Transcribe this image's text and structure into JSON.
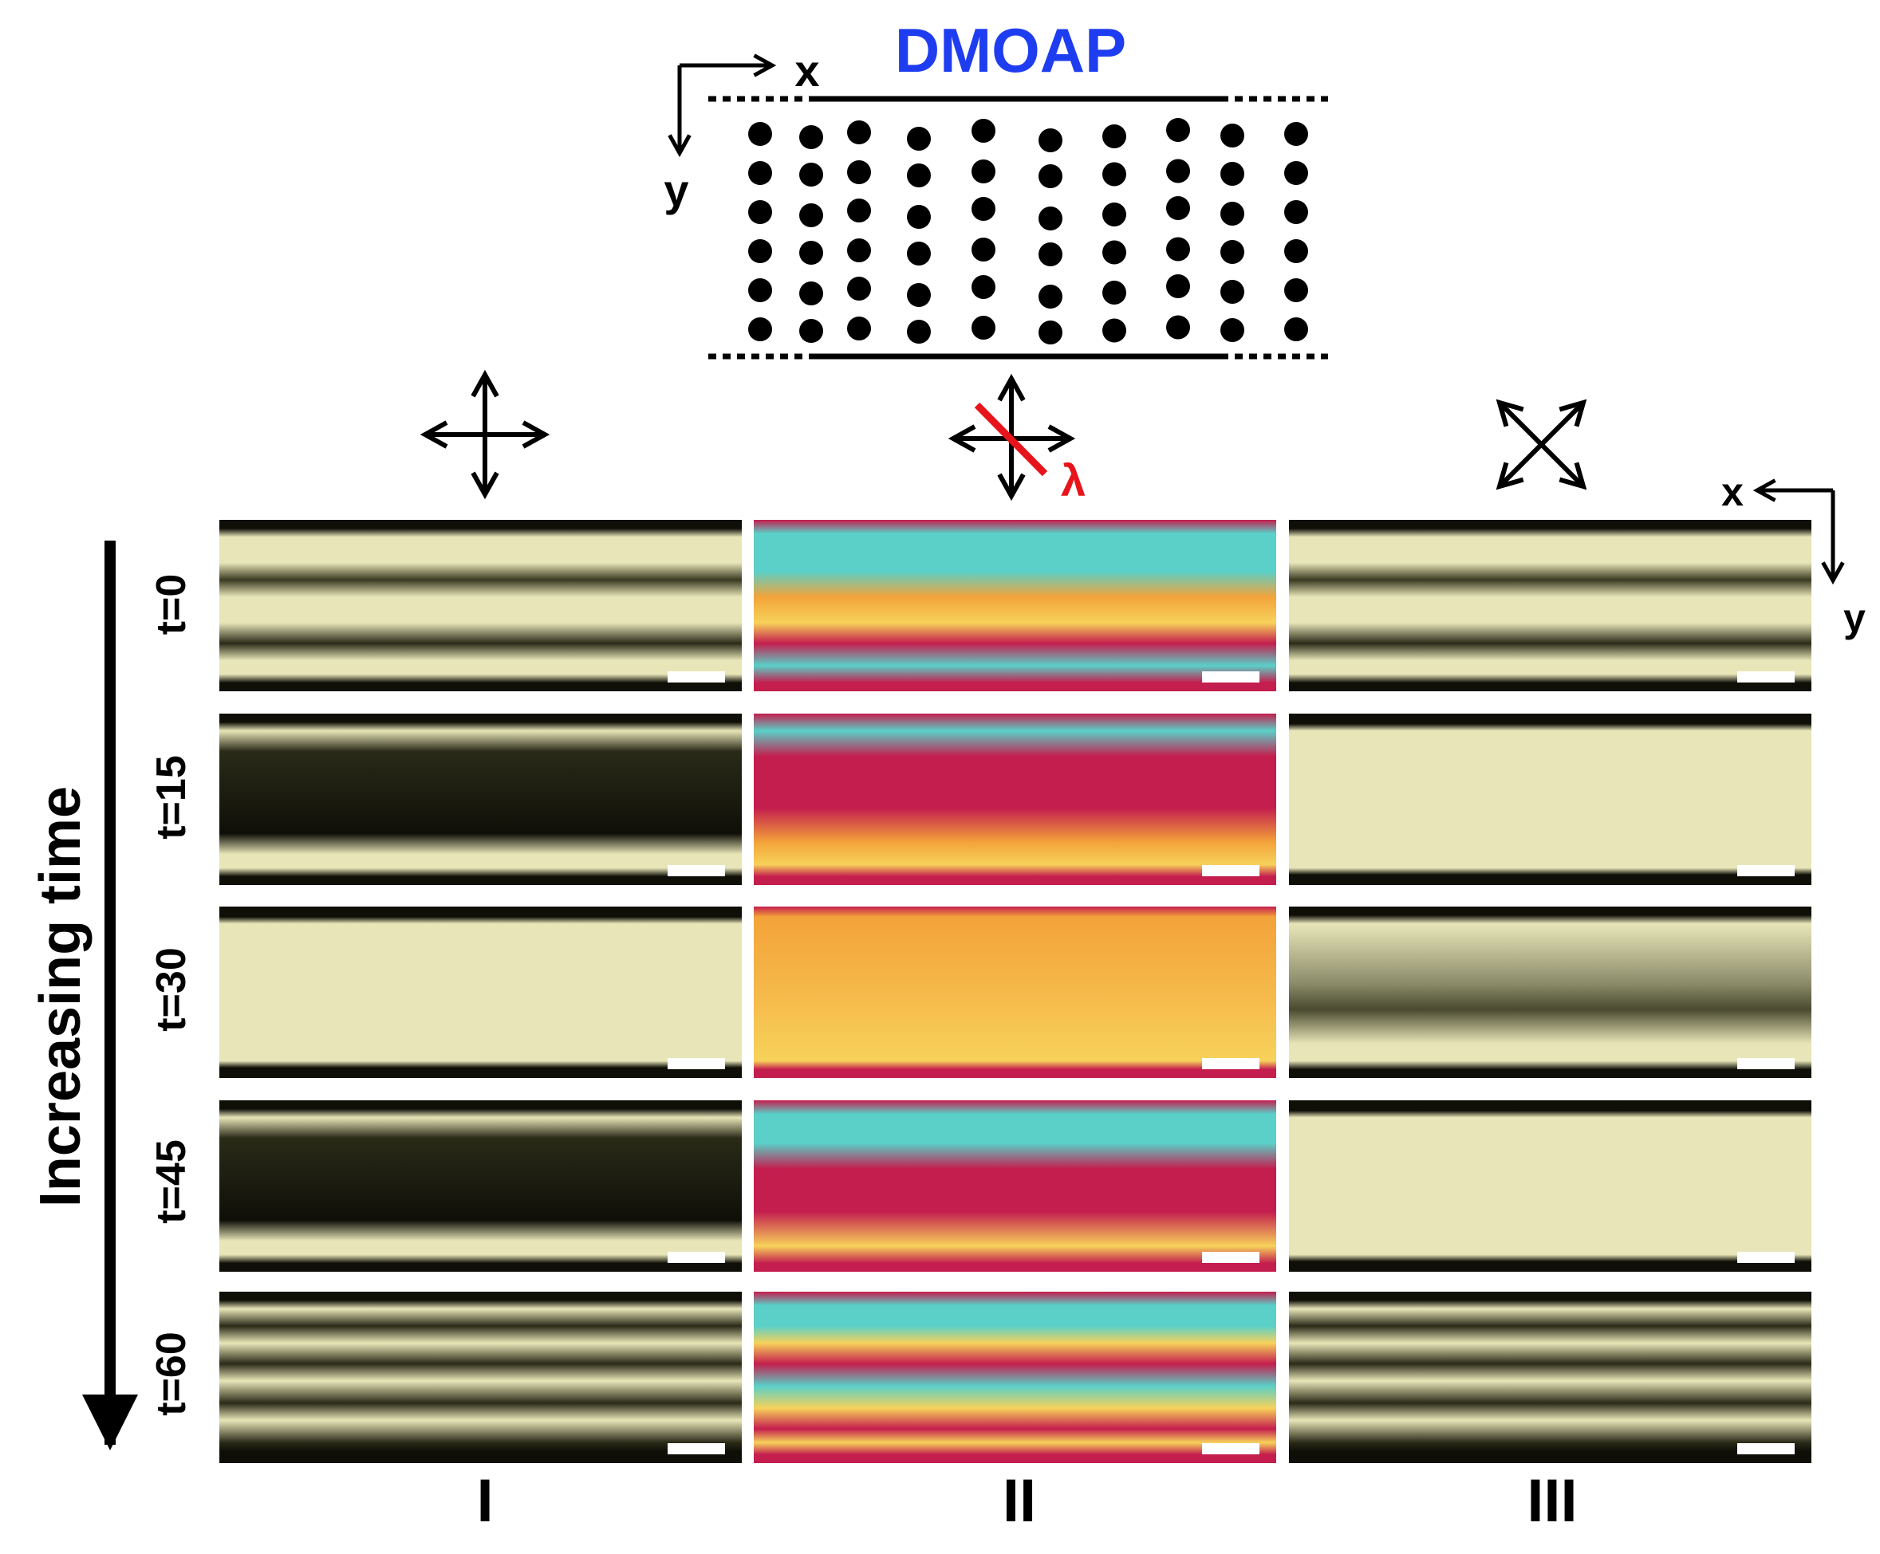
{
  "schematic": {
    "title": "DMOAP",
    "title_color": "#1f3df0",
    "axis_x": "x",
    "axis_y": "y",
    "columns": 10,
    "dots_per_column": 6
  },
  "polarizer_icons": [
    {
      "column": "I",
      "icon": "crossed-polarizers-icon"
    },
    {
      "column": "II",
      "icon": "crossed-polarizers-with-waveplate-icon",
      "label": "λ",
      "label_color": "#e8141b"
    },
    {
      "column": "III",
      "icon": "rotated-crossed-polarizers-icon"
    }
  ],
  "panel_axes": {
    "x": "x",
    "y": "y"
  },
  "time_axis": {
    "label": "Increasing time"
  },
  "rows": [
    {
      "label": "t=0"
    },
    {
      "label": "t=15"
    },
    {
      "label": "t=30"
    },
    {
      "label": "t=45"
    },
    {
      "label": "t=60"
    }
  ],
  "columns": [
    {
      "label": "I"
    },
    {
      "label": "II"
    },
    {
      "label": "III"
    }
  ],
  "colors": {
    "pom_light": "#e8e6b8",
    "pom_dark": "#0f0f08",
    "wave_magenta": "#c41e4e",
    "wave_yellow": "#f7d25a",
    "wave_cyan": "#5ad0c8",
    "wave_orange": "#f3a33a"
  }
}
